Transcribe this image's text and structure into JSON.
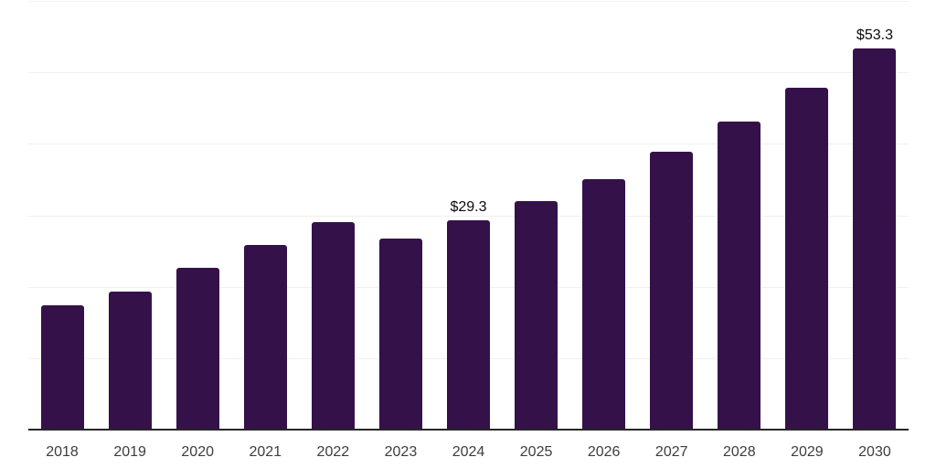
{
  "chart_data": {
    "type": "bar",
    "title": "",
    "xlabel": "",
    "ylabel": "",
    "categories": [
      "2018",
      "2019",
      "2020",
      "2021",
      "2022",
      "2023",
      "2024",
      "2025",
      "2026",
      "2027",
      "2028",
      "2029",
      "2030"
    ],
    "values": [
      17.4,
      19.3,
      22.6,
      25.8,
      29.1,
      26.7,
      29.3,
      32.0,
      35.1,
      38.9,
      43.1,
      47.9,
      53.3
    ],
    "point_labels": [
      "",
      "",
      "",
      "",
      "",
      "",
      "$29.3",
      "",
      "",
      "",
      "",
      "",
      "$53.3"
    ],
    "ylim": [
      0,
      60
    ],
    "gridline_interval": 10,
    "grid": "horizontal",
    "legend_position": "none",
    "colors": {
      "bar": "#351149",
      "axis": "#262626",
      "gridline": "#f0f0f0",
      "tick_label": "#3d3d3d",
      "data_label": "#0a0a0a",
      "background": "#ffffff"
    }
  }
}
